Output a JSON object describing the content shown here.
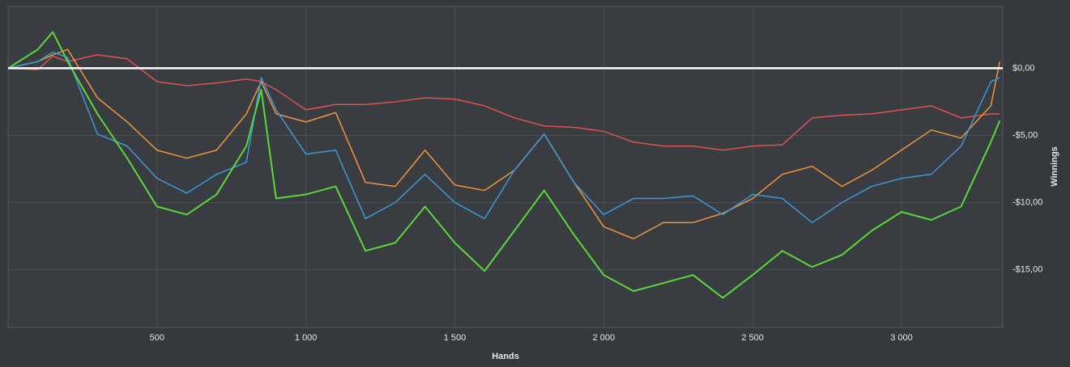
{
  "chart_data": {
    "type": "line",
    "x_label": "Hands",
    "y_label": "Winnings",
    "x": [
      0,
      100,
      150,
      200,
      300,
      400,
      500,
      600,
      700,
      800,
      850,
      900,
      1000,
      1100,
      1200,
      1300,
      1400,
      1500,
      1600,
      1700,
      1800,
      1900,
      2000,
      2100,
      2200,
      2300,
      2400,
      2500,
      2600,
      2700,
      2800,
      2900,
      3000,
      3100,
      3200,
      3300,
      3330
    ],
    "series": [
      {
        "name": "red",
        "color": "#e05252",
        "values": [
          0,
          -0.1,
          0.9,
          0.5,
          1.0,
          0.7,
          -1.0,
          -1.3,
          -1.1,
          -0.8,
          -1.0,
          -1.6,
          -3.1,
          -2.7,
          -2.7,
          -2.5,
          -2.2,
          -2.3,
          -2.8,
          -3.7,
          -4.3,
          -4.4,
          -4.7,
          -5.5,
          -5.8,
          -5.8,
          -6.1,
          -5.8,
          -5.7,
          -3.7,
          -3.5,
          -3.4,
          -3.1,
          -2.8,
          -3.7,
          -3.4,
          -3.4
        ]
      },
      {
        "name": "orange",
        "color": "#f0953a",
        "values": [
          0,
          0.5,
          1.0,
          1.4,
          -2.2,
          -4.0,
          -6.1,
          -6.7,
          -6.1,
          -3.4,
          -1.0,
          -3.4,
          -4.0,
          -3.3,
          -8.5,
          -8.8,
          -6.1,
          -8.7,
          -9.1,
          -7.6,
          -4.9,
          -8.5,
          -11.8,
          -12.7,
          -11.5,
          -11.5,
          -10.8,
          -9.7,
          -7.9,
          -7.3,
          -8.8,
          -7.6,
          -6.1,
          -4.6,
          -5.2,
          -2.8,
          0.5
        ]
      },
      {
        "name": "blue",
        "color": "#3a9ad9",
        "values": [
          0,
          0.5,
          1.2,
          0.8,
          -4.9,
          -5.8,
          -8.2,
          -9.3,
          -7.9,
          -7.0,
          -0.7,
          -3.1,
          -6.4,
          -6.1,
          -11.2,
          -10.0,
          -7.9,
          -10.0,
          -11.2,
          -7.6,
          -4.9,
          -8.5,
          -10.9,
          -9.7,
          -9.7,
          -9.5,
          -10.9,
          -9.4,
          -9.7,
          -11.5,
          -10.0,
          -8.8,
          -8.2,
          -7.9,
          -5.8,
          -1.0,
          -0.7
        ]
      },
      {
        "name": "green",
        "color": "#5ad83a",
        "values": [
          0,
          1.4,
          2.7,
          0.5,
          -3.4,
          -6.7,
          -10.3,
          -10.9,
          -9.4,
          -5.8,
          -1.6,
          -9.7,
          -9.4,
          -8.8,
          -13.6,
          -13.0,
          -10.3,
          -13.0,
          -15.1,
          -12.1,
          -9.1,
          -12.4,
          -15.4,
          -16.6,
          -16.0,
          -15.4,
          -17.1,
          -15.4,
          -13.6,
          -14.8,
          -13.9,
          -12.1,
          -10.7,
          -11.3,
          -10.3,
          -5.5,
          -3.9
        ]
      }
    ],
    "xlim": [
      0,
      3340
    ],
    "ylim": [
      -19.3,
      4.6
    ],
    "xticks": [
      500,
      {
        "value": 1000,
        "label": "1 000"
      },
      {
        "value": 1500,
        "label": "1 500"
      },
      {
        "value": 2000,
        "label": "2 000"
      },
      {
        "value": 2500,
        "label": "2 500"
      },
      {
        "value": 3000,
        "label": "3 000"
      }
    ],
    "yticks": [
      {
        "value": 0,
        "label": "$0,00"
      },
      {
        "value": -5,
        "label": "-$5,00"
      },
      {
        "value": -10,
        "label": "-$10,00"
      },
      {
        "value": -15,
        "label": "-$15,00"
      }
    ],
    "grid": true
  }
}
